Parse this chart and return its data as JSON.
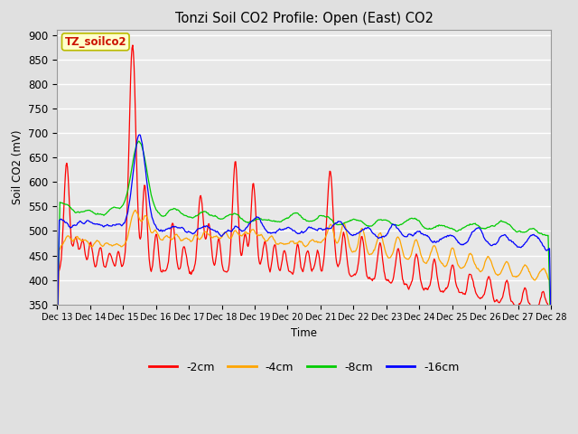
{
  "title": "Tonzi Soil CO2 Profile: Open (East) CO2",
  "ylabel": "Soil CO2 (mV)",
  "xlabel": "Time",
  "annotation": "TZ_soilco2",
  "ylim": [
    350,
    910
  ],
  "yticks": [
    350,
    400,
    450,
    500,
    550,
    600,
    650,
    700,
    750,
    800,
    850,
    900
  ],
  "colors": {
    "-2cm": "#ff0000",
    "-4cm": "#ffa500",
    "-8cm": "#00cc00",
    "-16cm": "#0000ff"
  },
  "legend_labels": [
    "-2cm",
    "-4cm",
    "-8cm",
    "-16cm"
  ],
  "bg_color": "#e0e0e0",
  "plot_bg_color": "#e8e8e8",
  "x_start": 13,
  "x_end": 28,
  "xtick_positions": [
    13,
    14,
    15,
    16,
    17,
    18,
    19,
    20,
    21,
    22,
    23,
    24,
    25,
    26,
    27,
    28
  ],
  "xtick_labels": [
    "Dec 13",
    "Dec 14",
    "Dec 15",
    "Dec 16",
    "Dec 17",
    "Dec 18",
    "Dec 19",
    "Dec 20",
    "Dec 21",
    "Dec 22",
    "Dec 23",
    "Dec 24",
    "Dec 25",
    "Dec 26",
    "Dec 27",
    "Dec 28"
  ]
}
